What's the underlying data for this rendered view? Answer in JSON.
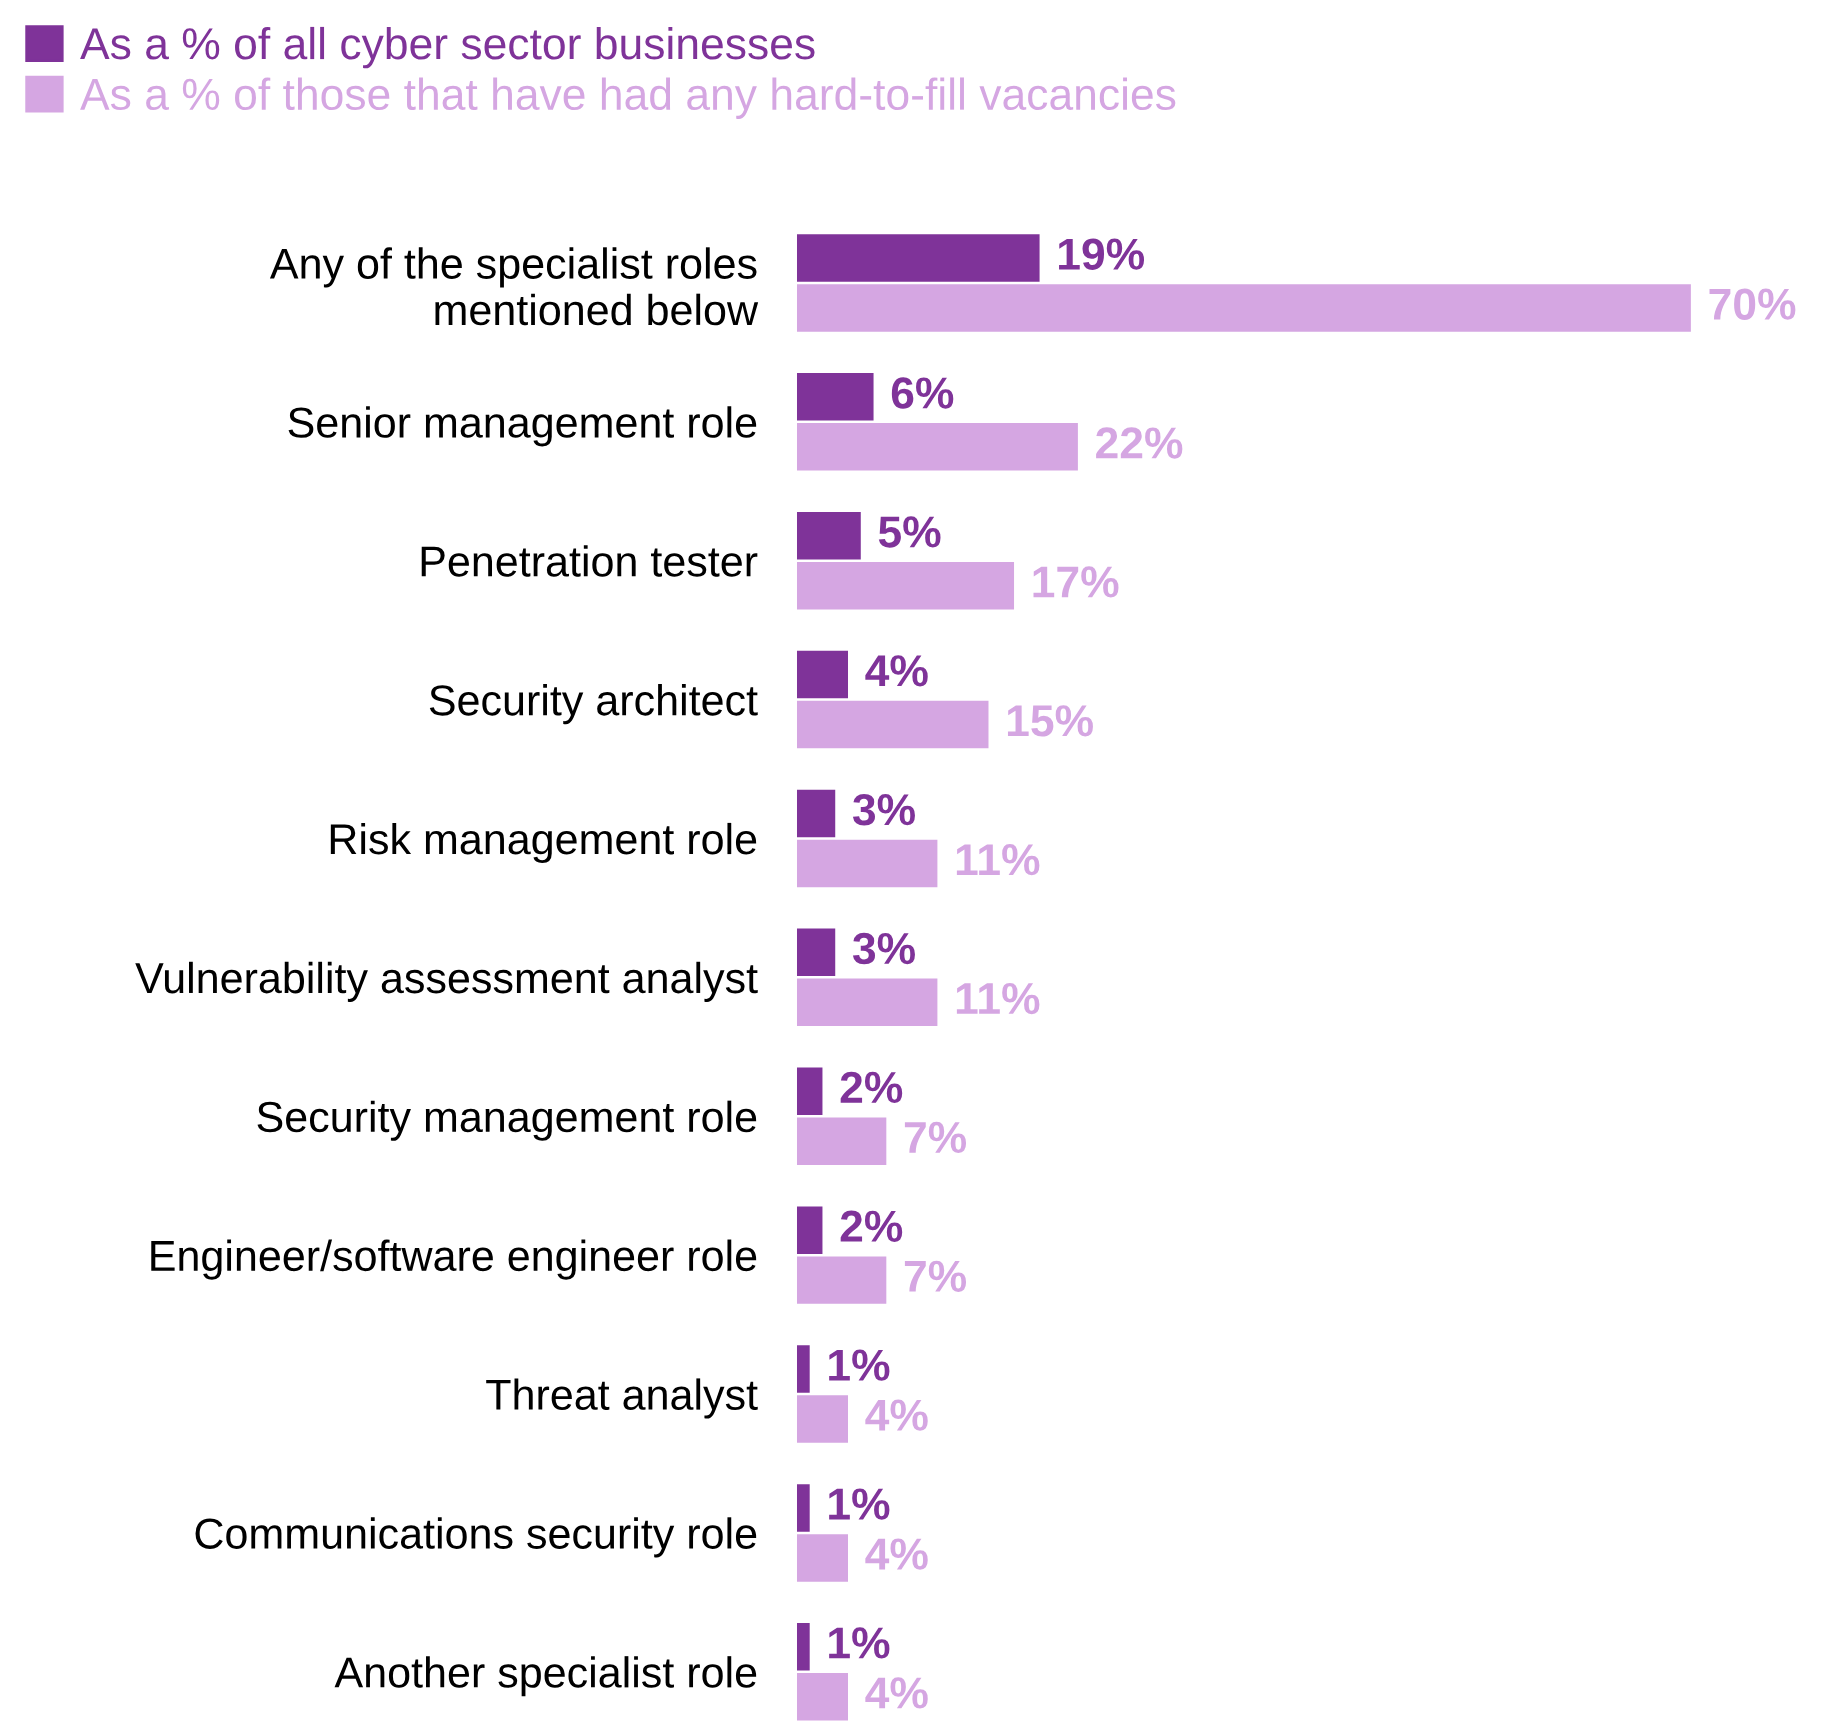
{
  "chart_data": {
    "type": "bar",
    "orientation": "horizontal",
    "categories": [
      "Any of the specialist roles\nmentioned below",
      "Senior management role",
      "Penetration tester",
      "Security architect",
      "Risk management role",
      "Vulnerability assessment analyst",
      "Security management role",
      "Engineer/software engineer role",
      "Threat analyst",
      "Communications security role",
      "Another specialist role"
    ],
    "series": [
      {
        "name": "As a % of all cyber sector businesses",
        "color": "#7f3399",
        "values": [
          19,
          6,
          5,
          4,
          3,
          3,
          2,
          2,
          1,
          1,
          1
        ],
        "value_labels": [
          "19%",
          "6%",
          "5%",
          "4%",
          "3%",
          "3%",
          "2%",
          "2%",
          "1%",
          "1%",
          "1%"
        ]
      },
      {
        "name": "As a % of those that have had any hard-to-fill vacancies",
        "color": "#d5a6e2",
        "values": [
          70,
          22,
          17,
          15,
          11,
          11,
          7,
          7,
          4,
          4,
          4
        ],
        "value_labels": [
          "70%",
          "22%",
          "17%",
          "15%",
          "11%",
          "11%",
          "7%",
          "7%",
          "4%",
          "4%",
          "4%"
        ]
      }
    ],
    "legend": "top left",
    "grid": false,
    "tick_labels": "y"
  }
}
